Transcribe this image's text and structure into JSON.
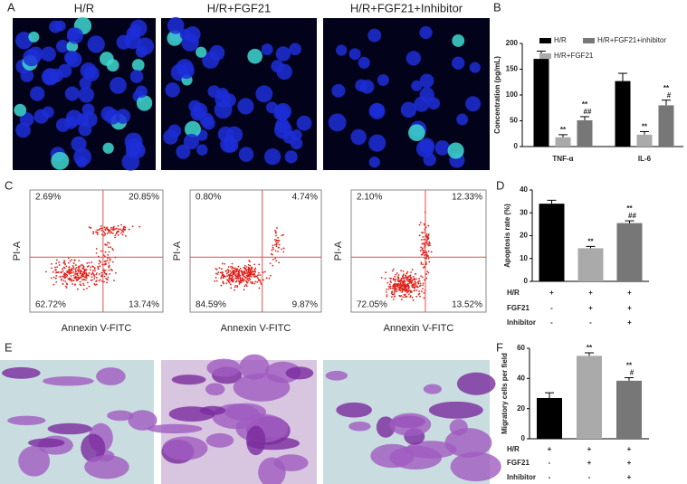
{
  "panel_labels": [
    "A",
    "B",
    "C",
    "D",
    "E",
    "F"
  ],
  "panel_a": {
    "titles": [
      "H/R",
      "H/R+FGF21",
      "H/R+FGF21+Inhibitor"
    ]
  },
  "panel_c": {
    "x_label": "Annexin V-FITC",
    "y_label": "PI-A",
    "plots": [
      {
        "quadrants": [
          "2.69%",
          "20.85%",
          "62.72%",
          "13.74%"
        ]
      },
      {
        "quadrants": [
          "0.80%",
          "4.74%",
          "84.59%",
          "9.87%"
        ]
      },
      {
        "quadrants": [
          "2.10%",
          "12.33%",
          "72.05%",
          "13.52%"
        ]
      }
    ]
  },
  "chart_data": [
    {
      "type": "grouped-bar",
      "y_label": "Concentration (pg/mL)",
      "categories": [
        "TNF-α",
        "IL-6"
      ],
      "series": [
        {
          "name": "H/R",
          "color": "#000000",
          "values": [
            170,
            127
          ],
          "errors": [
            15,
            15
          ]
        },
        {
          "name": "H/R+FGF21",
          "color": "#aaaaaa",
          "values": [
            18,
            23
          ],
          "errors": [
            5,
            6
          ],
          "annotations": [
            [
              "**"
            ],
            [
              "**"
            ]
          ]
        },
        {
          "name": "H/R+FGF21+inhibitor",
          "color": "#777777",
          "values": [
            51,
            80
          ],
          "errors": [
            7,
            10
          ],
          "annotations": [
            [
              "**",
              "##"
            ],
            [
              "**",
              "#"
            ]
          ]
        }
      ],
      "ylim": [
        0,
        200
      ],
      "yticks": [
        0,
        50,
        100,
        150,
        200
      ]
    },
    {
      "type": "bar",
      "y_label": "Apoptosis rate (%)",
      "values": [
        34,
        14.5,
        25.5
      ],
      "errors": [
        1.5,
        0.8,
        1
      ],
      "colors": [
        "#000000",
        "#aaaaaa",
        "#777777"
      ],
      "annotations": [
        [],
        [
          "**"
        ],
        [
          "**",
          "##"
        ]
      ],
      "ylim": [
        0,
        40
      ],
      "yticks": [
        0,
        10,
        20,
        30,
        40
      ],
      "table": [
        {
          "label": "H/R",
          "cells": [
            "+",
            "+",
            "+"
          ]
        },
        {
          "label": "FGF21",
          "cells": [
            "-",
            "+",
            "+"
          ]
        },
        {
          "label": "Inhibitor",
          "cells": [
            "-",
            "-",
            "+"
          ]
        }
      ]
    },
    {
      "type": "bar",
      "y_label": "Migratory cells per field",
      "values": [
        27,
        55,
        38.5
      ],
      "errors": [
        3.5,
        2,
        2
      ],
      "colors": [
        "#000000",
        "#aaaaaa",
        "#777777"
      ],
      "annotations": [
        [],
        [
          "**"
        ],
        [
          "**",
          "#"
        ]
      ],
      "ylim": [
        0,
        60
      ],
      "yticks": [
        0,
        20,
        40,
        60
      ],
      "table": [
        {
          "label": "H/R",
          "cells": [
            "+",
            "+",
            "+"
          ]
        },
        {
          "label": "FGF21",
          "cells": [
            "-",
            "+",
            "+"
          ]
        },
        {
          "label": "Inhibitor",
          "cells": [
            "-",
            "-",
            "+"
          ]
        }
      ]
    }
  ]
}
